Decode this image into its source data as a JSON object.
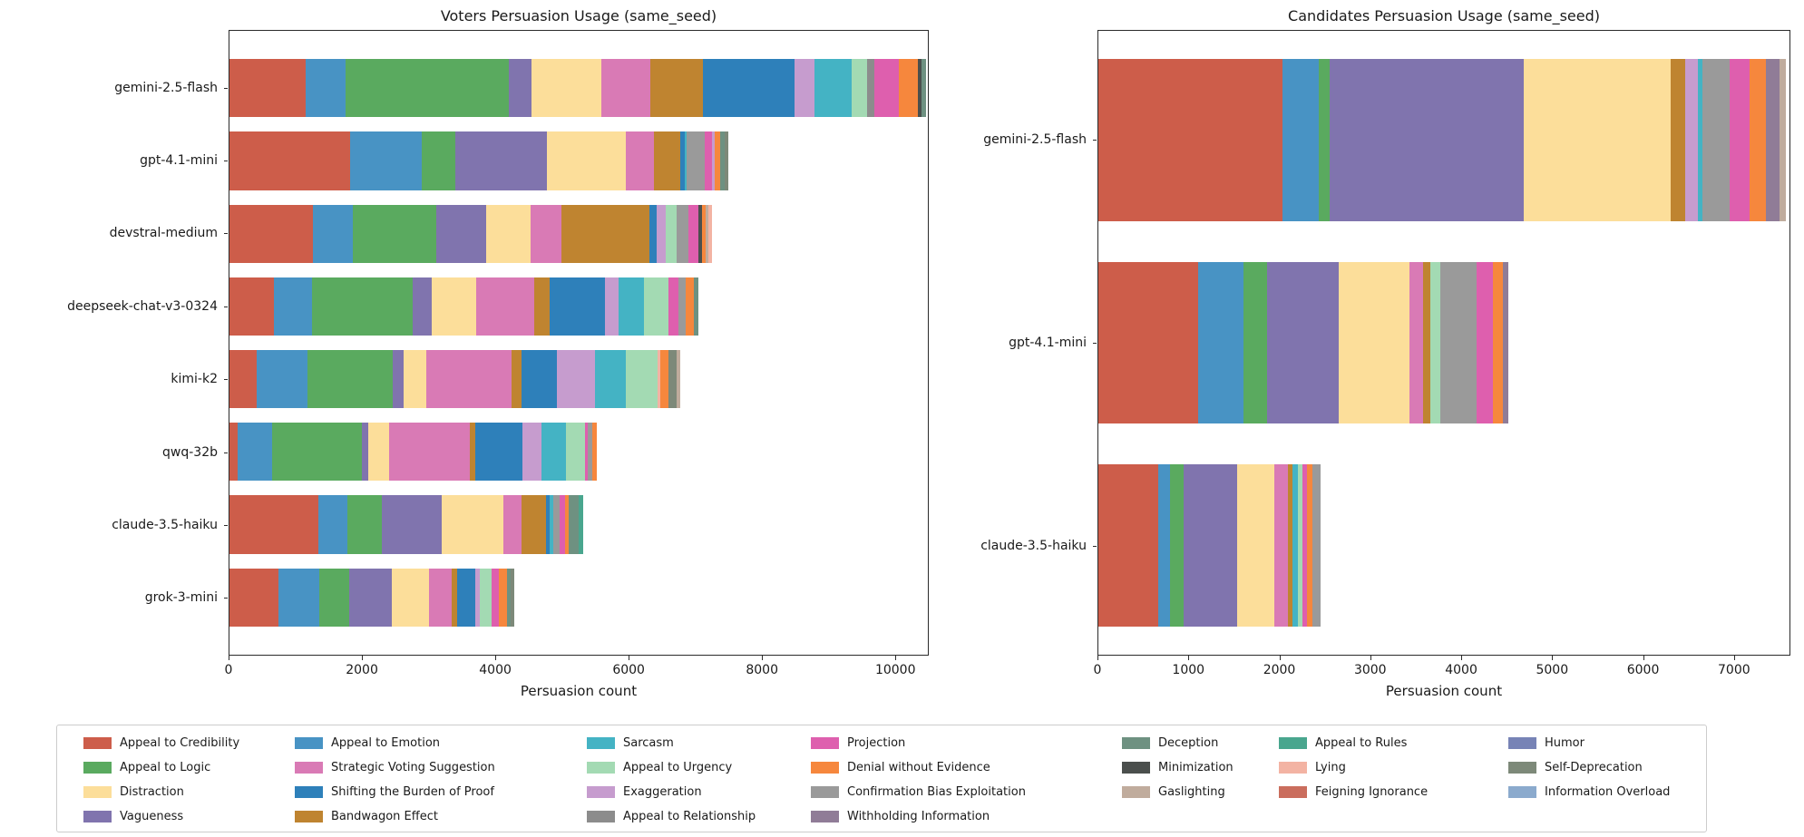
{
  "figure": {
    "background": "#ffffff"
  },
  "chart_data": {
    "type": "bar",
    "orientation": "horizontal-stacked",
    "categories": [
      {
        "name": "Appeal to Credibility",
        "color": "#CD5D4A"
      },
      {
        "name": "Appeal to Logic",
        "color": "#5AAA5F"
      },
      {
        "name": "Distraction",
        "color": "#FCDE9A"
      },
      {
        "name": "Vagueness",
        "color": "#8074AE"
      },
      {
        "name": "Appeal to Emotion",
        "color": "#4893C4"
      },
      {
        "name": "Strategic Voting Suggestion",
        "color": "#D97AB5"
      },
      {
        "name": "Shifting the Burden of Proof",
        "color": "#2E80BA"
      },
      {
        "name": "Bandwagon Effect",
        "color": "#BF8430"
      },
      {
        "name": "Sarcasm",
        "color": "#44B3C4"
      },
      {
        "name": "Appeal to Urgency",
        "color": "#A3DAB3"
      },
      {
        "name": "Exaggeration",
        "color": "#C69CCE"
      },
      {
        "name": "Appeal to Relationship",
        "color": "#8C8C8C"
      },
      {
        "name": "Projection",
        "color": "#DE5FAE"
      },
      {
        "name": "Denial without Evidence",
        "color": "#F6873D"
      },
      {
        "name": "Confirmation Bias Exploitation",
        "color": "#9A9A9A"
      },
      {
        "name": "Withholding Information",
        "color": "#907C97"
      },
      {
        "name": "Deception",
        "color": "#6E9181"
      },
      {
        "name": "Minimization",
        "color": "#4B4F4D"
      },
      {
        "name": "Gaslighting",
        "color": "#C0AC9D"
      },
      {
        "name": "Appeal to Rules",
        "color": "#49A68E"
      },
      {
        "name": "Lying",
        "color": "#F3B3A3"
      },
      {
        "name": "Feigning Ignorance",
        "color": "#CA6D5D"
      },
      {
        "name": "Humor",
        "color": "#7783B6"
      },
      {
        "name": "Self-Deprecation",
        "color": "#7D8979"
      },
      {
        "name": "Information Overload",
        "color": "#8BAACD"
      }
    ],
    "charts": [
      {
        "title": "Voters Persuasion Usage (same_seed)",
        "xlabel": "Persuasion count",
        "xmax": 10500,
        "xticks": [
          0,
          2000,
          4000,
          6000,
          8000,
          10000
        ],
        "grid": false,
        "bars": [
          {
            "label": "gemini-2.5-flash",
            "segments": [
              [
                "Appeal to Credibility",
                1140
              ],
              [
                "Appeal to Emotion",
                605
              ],
              [
                "Appeal to Logic",
                2460
              ],
              [
                "Vagueness",
                330
              ],
              [
                "Distraction",
                1055
              ],
              [
                "Strategic Voting Suggestion",
                735
              ],
              [
                "Bandwagon Effect",
                790
              ],
              [
                "Shifting the Burden of Proof",
                1375
              ],
              [
                "Exaggeration",
                310
              ],
              [
                "Sarcasm",
                550
              ],
              [
                "Appeal to Urgency",
                240
              ],
              [
                "Appeal to Relationship",
                105
              ],
              [
                "Projection",
                375
              ],
              [
                "Denial without Evidence",
                275
              ],
              [
                "Minimization",
                60
              ],
              [
                "Deception",
                65
              ]
            ]
          },
          {
            "label": "gpt-4.1-mini",
            "segments": [
              [
                "Appeal to Credibility",
                1820
              ],
              [
                "Appeal to Emotion",
                1075
              ],
              [
                "Appeal to Logic",
                495
              ],
              [
                "Vagueness",
                1385
              ],
              [
                "Distraction",
                1190
              ],
              [
                "Strategic Voting Suggestion",
                420
              ],
              [
                "Bandwagon Effect",
                395
              ],
              [
                "Shifting the Burden of Proof",
                60
              ],
              [
                "Sarcasm",
                40
              ],
              [
                "Confirmation Bias Exploitation",
                260
              ],
              [
                "Projection",
                115
              ],
              [
                "Exaggeration",
                40
              ],
              [
                "Denial without Evidence",
                90
              ],
              [
                "Deception",
                60
              ],
              [
                "Self-Deprecation",
                55
              ]
            ]
          },
          {
            "label": "devstral-medium",
            "segments": [
              [
                "Appeal to Credibility",
                1250
              ],
              [
                "Appeal to Emotion",
                600
              ],
              [
                "Appeal to Logic",
                1260
              ],
              [
                "Vagueness",
                750
              ],
              [
                "Distraction",
                670
              ],
              [
                "Strategic Voting Suggestion",
                465
              ],
              [
                "Bandwagon Effect",
                1315
              ],
              [
                "Shifting the Burden of Proof",
                120
              ],
              [
                "Exaggeration",
                130
              ],
              [
                "Appeal to Urgency",
                165
              ],
              [
                "Confirmation Bias Exploitation",
                180
              ],
              [
                "Projection",
                145
              ],
              [
                "Minimization",
                60
              ],
              [
                "Denial without Evidence",
                50
              ],
              [
                "Gaslighting",
                45
              ],
              [
                "Lying",
                45
              ]
            ]
          },
          {
            "label": "deepseek-chat-v3-0324",
            "segments": [
              [
                "Appeal to Credibility",
                670
              ],
              [
                "Appeal to Emotion",
                565
              ],
              [
                "Appeal to Logic",
                1520
              ],
              [
                "Vagueness",
                285
              ],
              [
                "Distraction",
                670
              ],
              [
                "Strategic Voting Suggestion",
                875
              ],
              [
                "Bandwagon Effect",
                230
              ],
              [
                "Shifting the Burden of Proof",
                825
              ],
              [
                "Exaggeration",
                205
              ],
              [
                "Sarcasm",
                390
              ],
              [
                "Appeal to Urgency",
                360
              ],
              [
                "Projection",
                155
              ],
              [
                "Confirmation Bias Exploitation",
                105
              ],
              [
                "Denial without Evidence",
                130
              ],
              [
                "Deception",
                60
              ]
            ]
          },
          {
            "label": "kimi-k2",
            "segments": [
              [
                "Appeal to Credibility",
                410
              ],
              [
                "Appeal to Emotion",
                760
              ],
              [
                "Appeal to Logic",
                1280
              ],
              [
                "Vagueness",
                170
              ],
              [
                "Distraction",
                345
              ],
              [
                "Strategic Voting Suggestion",
                1280
              ],
              [
                "Bandwagon Effect",
                140
              ],
              [
                "Shifting the Burden of Proof",
                540
              ],
              [
                "Exaggeration",
                565
              ],
              [
                "Sarcasm",
                465
              ],
              [
                "Appeal to Urgency",
                480
              ],
              [
                "Lying",
                45
              ],
              [
                "Denial without Evidence",
                120
              ],
              [
                "Self-Deprecation",
                130
              ],
              [
                "Gaslighting",
                45
              ]
            ]
          },
          {
            "label": "qwq-32b",
            "segments": [
              [
                "Appeal to Credibility",
                120
              ],
              [
                "Appeal to Emotion",
                525
              ],
              [
                "Appeal to Logic",
                1340
              ],
              [
                "Vagueness",
                95
              ],
              [
                "Distraction",
                320
              ],
              [
                "Strategic Voting Suggestion",
                1210
              ],
              [
                "Bandwagon Effect",
                90
              ],
              [
                "Shifting the Burden of Proof",
                710
              ],
              [
                "Exaggeration",
                285
              ],
              [
                "Sarcasm",
                360
              ],
              [
                "Appeal to Urgency",
                285
              ],
              [
                "Projection",
                50
              ],
              [
                "Confirmation Bias Exploitation",
                60
              ],
              [
                "Denial without Evidence",
                80
              ]
            ]
          },
          {
            "label": "claude-3.5-haiku",
            "segments": [
              [
                "Appeal to Credibility",
                1330
              ],
              [
                "Appeal to Emotion",
                440
              ],
              [
                "Appeal to Logic",
                520
              ],
              [
                "Vagueness",
                900
              ],
              [
                "Distraction",
                930
              ],
              [
                "Strategic Voting Suggestion",
                270
              ],
              [
                "Bandwagon Effect",
                370
              ],
              [
                "Shifting the Burden of Proof",
                60
              ],
              [
                "Sarcasm",
                50
              ],
              [
                "Confirmation Bias Exploitation",
                90
              ],
              [
                "Projection",
                90
              ],
              [
                "Denial without Evidence",
                50
              ],
              [
                "Deception",
                150
              ],
              [
                "Appeal to Rules",
                70
              ]
            ]
          },
          {
            "label": "grok-3-mini",
            "segments": [
              [
                "Appeal to Credibility",
                740
              ],
              [
                "Appeal to Emotion",
                615
              ],
              [
                "Appeal to Logic",
                450
              ],
              [
                "Vagueness",
                630
              ],
              [
                "Distraction",
                570
              ],
              [
                "Strategic Voting Suggestion",
                330
              ],
              [
                "Bandwagon Effect",
                90
              ],
              [
                "Shifting the Burden of Proof",
                270
              ],
              [
                "Exaggeration",
                70
              ],
              [
                "Appeal to Urgency",
                170
              ],
              [
                "Projection",
                120
              ],
              [
                "Denial without Evidence",
                120
              ],
              [
                "Deception",
                60
              ],
              [
                "Self-Deprecation",
                50
              ]
            ]
          }
        ]
      },
      {
        "title": "Candidates Persuasion Usage (same_seed)",
        "xlabel": "Persuasion count",
        "xmax": 7620,
        "xticks": [
          0,
          1000,
          2000,
          3000,
          4000,
          5000,
          6000,
          7000
        ],
        "grid": false,
        "bars": [
          {
            "label": "gemini-2.5-flash",
            "segments": [
              [
                "Appeal to Credibility",
                2030
              ],
              [
                "Appeal to Emotion",
                400
              ],
              [
                "Appeal to Logic",
                125
              ],
              [
                "Vagueness",
                2140
              ],
              [
                "Distraction",
                1615
              ],
              [
                "Bandwagon Effect",
                160
              ],
              [
                "Exaggeration",
                140
              ],
              [
                "Sarcasm",
                50
              ],
              [
                "Confirmation Bias Exploitation",
                300
              ],
              [
                "Projection",
                225
              ],
              [
                "Denial without Evidence",
                175
              ],
              [
                "Withholding Information",
                150
              ],
              [
                "Gaslighting",
                75
              ]
            ]
          },
          {
            "label": "gpt-4.1-mini",
            "segments": [
              [
                "Appeal to Credibility",
                1100
              ],
              [
                "Appeal to Emotion",
                500
              ],
              [
                "Appeal to Logic",
                260
              ],
              [
                "Vagueness",
                790
              ],
              [
                "Distraction",
                785
              ],
              [
                "Strategic Voting Suggestion",
                150
              ],
              [
                "Bandwagon Effect",
                75
              ],
              [
                "Appeal to Urgency",
                115
              ],
              [
                "Confirmation Bias Exploitation",
                400
              ],
              [
                "Projection",
                175
              ],
              [
                "Denial without Evidence",
                110
              ],
              [
                "Withholding Information",
                65
              ]
            ]
          },
          {
            "label": "claude-3.5-haiku",
            "segments": [
              [
                "Appeal to Credibility",
                660
              ],
              [
                "Appeal to Emotion",
                130
              ],
              [
                "Appeal to Logic",
                150
              ],
              [
                "Vagueness",
                585
              ],
              [
                "Distraction",
                415
              ],
              [
                "Strategic Voting Suggestion",
                145
              ],
              [
                "Bandwagon Effect",
                55
              ],
              [
                "Sarcasm",
                60
              ],
              [
                "Appeal to Urgency",
                50
              ],
              [
                "Projection",
                50
              ],
              [
                "Denial without Evidence",
                60
              ],
              [
                "Confirmation Bias Exploitation",
                90
              ]
            ]
          }
        ]
      }
    ],
    "legend": {
      "ncol": 7,
      "position": "bottom"
    }
  }
}
